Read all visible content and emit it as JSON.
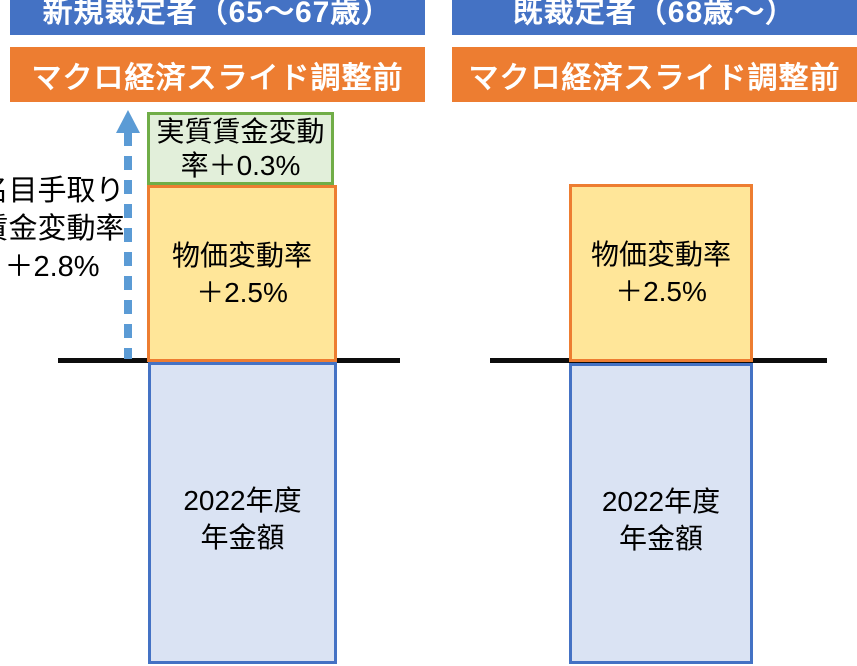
{
  "left": {
    "header": "新規裁定者（65〜67歳）",
    "subheader": "マクロ経済スライド調整前",
    "nominal_wage_label": {
      "line1": "名目手取り",
      "line2": "賃金変動率",
      "line3": "＋2.8%"
    },
    "real_wage_box": {
      "line1": "実質賃金変動",
      "line2": "率＋0.3%"
    },
    "price_box": {
      "line1": "物価変動率",
      "line2": "＋2.5%"
    },
    "pension_box": {
      "line1": "2022年度",
      "line2": "年金額"
    }
  },
  "right": {
    "header": "既裁定者（68歳〜）",
    "subheader": "マクロ経済スライド調整前",
    "price_box": {
      "line1": "物価変動率",
      "line2": "＋2.5%"
    },
    "pension_box": {
      "line1": "2022年度",
      "line2": "年金額"
    }
  },
  "rates": {
    "nominal_take_home_wage_change": "+2.8%",
    "real_wage_change": "+0.3%",
    "price_change": "+2.5%"
  },
  "colors": {
    "banner_blue": "#4472c4",
    "banner_orange": "#ed7d31",
    "green_box_fill": "#e2efda",
    "green_box_border": "#70ad47",
    "price_box_fill": "#ffe699",
    "price_box_border": "#ed7d31",
    "pension_box_fill": "#dae3f3",
    "pension_box_border": "#4472c4",
    "arrow_blue": "#5b9bd5",
    "baseline_black": "#0d0d0d"
  }
}
